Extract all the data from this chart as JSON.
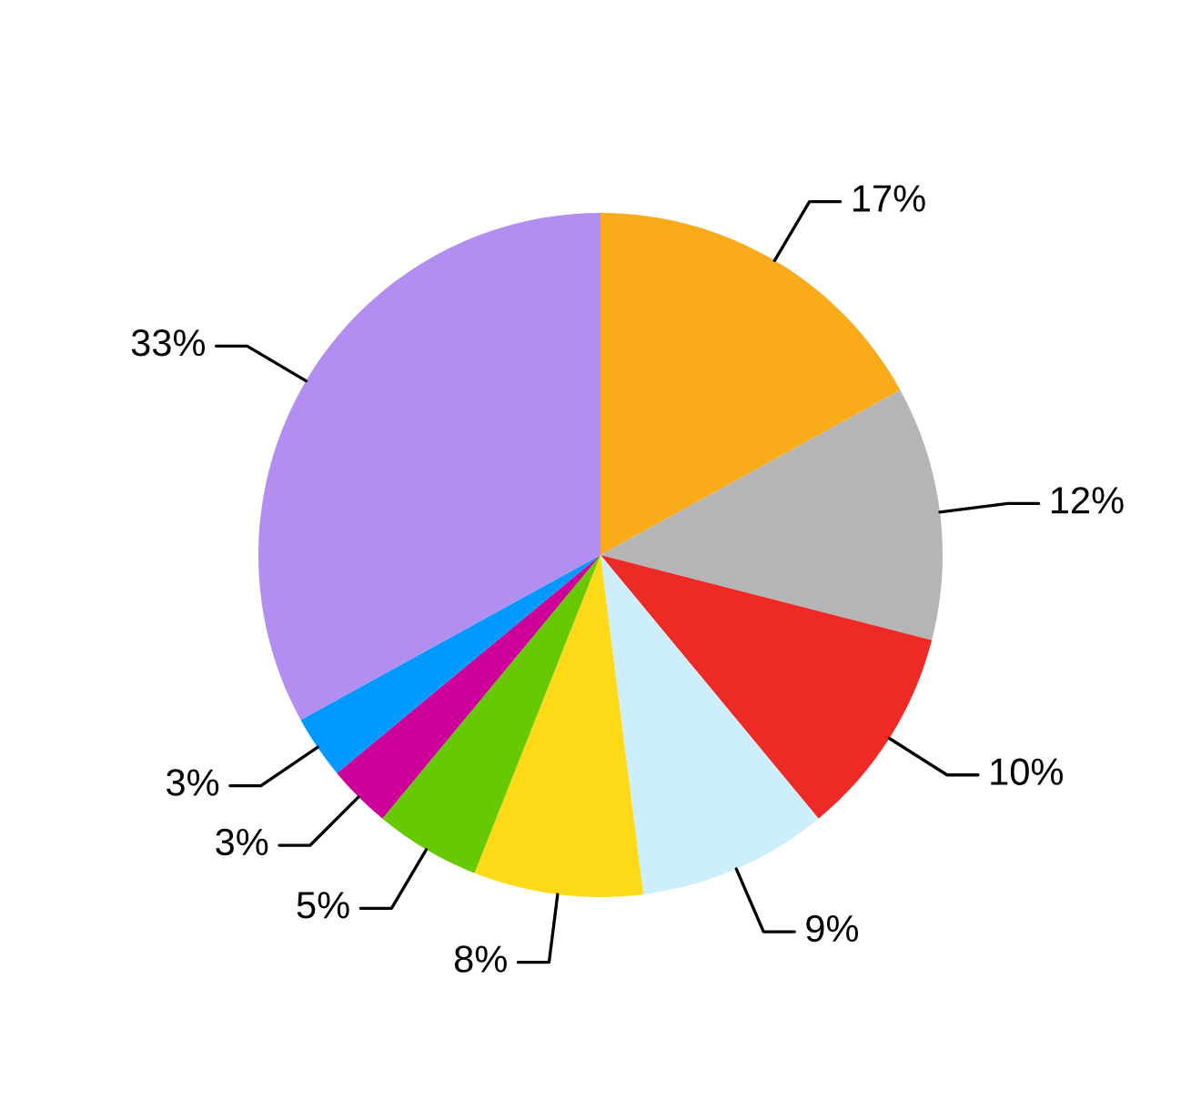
{
  "chart_data": {
    "type": "pie",
    "categories": [
      null,
      null,
      null,
      null,
      null,
      null,
      null,
      null,
      null
    ],
    "values": [
      17,
      12,
      10,
      9,
      8,
      5,
      3,
      3,
      33
    ],
    "value_labels": [
      "17%",
      "12%",
      "10%",
      "9%",
      "8%",
      "5%",
      "3%",
      "3%",
      "33%"
    ],
    "colors": [
      "#f9ab1a",
      "#b5b5b5",
      "#ee2a27",
      "#cdeefd",
      "#fdd917",
      "#66c901",
      "#cc0099",
      "#0099ff",
      "#b28ef0"
    ],
    "legend": false
  }
}
